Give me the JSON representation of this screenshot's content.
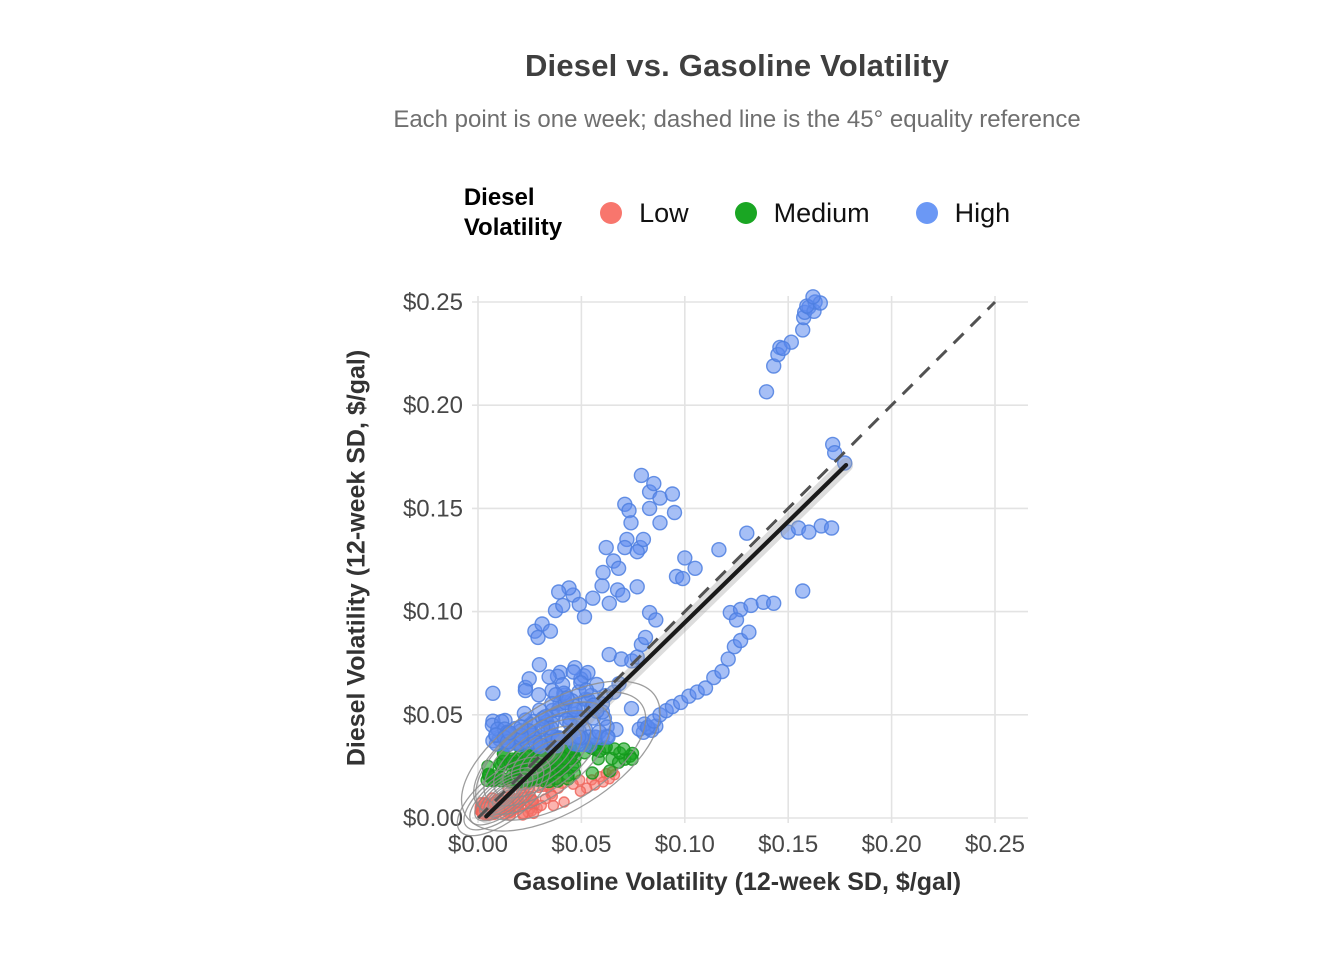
{
  "header": {
    "title": "Diesel vs. Gasoline Volatility",
    "subtitle": "Each point is one week; dashed line is the 45° equality reference"
  },
  "legend": {
    "title_line1": "Diesel",
    "title_line2": "Volatility",
    "items": [
      {
        "label": "Low",
        "color": "#F8766D"
      },
      {
        "label": "Medium",
        "color": "#1AA623"
      },
      {
        "label": "High",
        "color": "#6B98F5"
      }
    ]
  },
  "chart_data": {
    "type": "scatter",
    "title": "Diesel vs. Gasoline Volatility",
    "subtitle": "Each point is one week; dashed line is the 45° equality reference",
    "xlabel": "Gasoline Volatility (12-week SD, $/gal)",
    "ylabel": "Diesel Volatility (12-week SD, $/gal)",
    "xlim": [
      0,
      0.266
    ],
    "ylim": [
      0,
      0.253
    ],
    "grid": true,
    "legend_position": "top",
    "x_ticks": {
      "values": [
        0,
        0.05,
        0.1,
        0.15,
        0.2,
        0.25
      ],
      "labels": [
        "$0.00",
        "$0.05",
        "$0.10",
        "$0.15",
        "$0.20",
        "$0.25"
      ]
    },
    "y_ticks": {
      "values": [
        0,
        0.05,
        0.1,
        0.15,
        0.2,
        0.25
      ],
      "labels": [
        "$0.00",
        "$0.05",
        "$0.10",
        "$0.15",
        "$0.20",
        "$0.25"
      ]
    },
    "reference_line": {
      "meaning": "45-degree equality line",
      "style": "dashed",
      "color": "#525252",
      "from": [
        0,
        0
      ],
      "to": [
        0.25,
        0.25
      ]
    },
    "fit_line": {
      "meaning": "linear fit with confidence band",
      "color": "#1a1a1a",
      "band_color": "#9e9e9e",
      "from": [
        0.004,
        0.0008
      ],
      "to": [
        0.178,
        0.171
      ]
    },
    "contours": {
      "color": "#8c8c8c",
      "groups": [
        {
          "cx": 0.0125,
          "cy": 0.0105,
          "angle": -38,
          "rings": [
            [
              9,
              3.5
            ],
            [
              14,
              5.5
            ],
            [
              19,
              7.5
            ],
            [
              24,
              9.5
            ],
            [
              29,
              12
            ],
            [
              35,
              14.5
            ],
            [
              41,
              17
            ],
            [
              48,
              20
            ],
            [
              56,
              24
            ]
          ]
        },
        {
          "cx": 0.031,
          "cy": 0.029,
          "angle": -36,
          "rings": [
            [
              16,
              7
            ],
            [
              26,
              11
            ],
            [
              36,
              16
            ],
            [
              46,
              21
            ],
            [
              57,
              26
            ],
            [
              68,
              32
            ],
            [
              80,
              38
            ]
          ]
        },
        {
          "cx": 0.04,
          "cy": 0.03,
          "angle": -32,
          "rings": [
            [
              96,
              46
            ],
            [
              112,
              54
            ]
          ]
        }
      ]
    },
    "series": [
      {
        "name": "Low",
        "color": "#F8766D",
        "stroke": "#ef655c",
        "r": 5,
        "fill_opacity": 0.55,
        "cluster": {
          "seed": 33,
          "count": 120,
          "cx": 0.014,
          "sx": 0.013,
          "x_min": 0.001,
          "x_max": 0.066,
          "y_base": 0.002,
          "y_slope": 0.27,
          "y_sd": 0.0042,
          "y_min": 0.0012,
          "y_max": 0.0225
        },
        "points": [
          [
            0.055,
            0.0185
          ],
          [
            0.059,
            0.02
          ],
          [
            0.062,
            0.0215
          ],
          [
            0.065,
            0.0225
          ],
          [
            0.0635,
            0.019
          ],
          [
            0.0605,
            0.0175
          ],
          [
            0.0565,
            0.016
          ],
          [
            0.0525,
            0.0145
          ],
          [
            0.066,
            0.021
          ],
          [
            0.0495,
            0.013
          ]
        ]
      },
      {
        "name": "Medium",
        "color": "#1AA623",
        "stroke": "#14981c",
        "r": 6,
        "fill_opacity": 0.6,
        "cluster": {
          "seed": 22,
          "count": 130,
          "cx": 0.031,
          "sx": 0.016,
          "x_min": 0.004,
          "x_max": 0.076,
          "y_base": 0.0205,
          "y_slope": 0.155,
          "y_sd": 0.0047,
          "y_min": 0.0175,
          "y_max": 0.0385
        },
        "points": [
          [
            0.068,
            0.027
          ],
          [
            0.071,
            0.0285
          ],
          [
            0.0735,
            0.03
          ],
          [
            0.0685,
            0.0315
          ],
          [
            0.066,
            0.0335
          ],
          [
            0.0705,
            0.0335
          ],
          [
            0.052,
            0.0375
          ],
          [
            0.057,
            0.036
          ],
          [
            0.062,
            0.0345
          ],
          [
            0.0745,
            0.0285
          ]
        ]
      },
      {
        "name": "High",
        "color": "#5D8BEF",
        "stroke": "#4e7fe0",
        "r": 7,
        "fill_opacity": 0.55,
        "cluster": {
          "seed": 11,
          "count": 150,
          "cx": 0.037,
          "sx": 0.0175,
          "x_min": 0.006,
          "x_max": 0.082,
          "y_base": 0.0285,
          "y_slope": 0.45,
          "y_sd": 0.013,
          "y_min": 0.0345,
          "y_max": 0.098
        },
        "points": [
          [
            0.0275,
            0.0905
          ],
          [
            0.031,
            0.094
          ],
          [
            0.029,
            0.0875
          ],
          [
            0.0375,
            0.1005
          ],
          [
            0.041,
            0.103
          ],
          [
            0.046,
            0.108
          ],
          [
            0.044,
            0.1115
          ],
          [
            0.039,
            0.1095
          ],
          [
            0.035,
            0.0905
          ],
          [
            0.049,
            0.1035
          ],
          [
            0.0515,
            0.0975
          ],
          [
            0.0555,
            0.1065
          ],
          [
            0.06,
            0.1125
          ],
          [
            0.0635,
            0.104
          ],
          [
            0.0675,
            0.1105
          ],
          [
            0.07,
            0.108
          ],
          [
            0.0655,
            0.1245
          ],
          [
            0.068,
            0.121
          ],
          [
            0.062,
            0.131
          ],
          [
            0.0605,
            0.119
          ],
          [
            0.071,
            0.152
          ],
          [
            0.073,
            0.149
          ],
          [
            0.074,
            0.143
          ],
          [
            0.072,
            0.135
          ],
          [
            0.071,
            0.131
          ],
          [
            0.083,
            0.158
          ],
          [
            0.085,
            0.162
          ],
          [
            0.088,
            0.155
          ],
          [
            0.094,
            0.157
          ],
          [
            0.095,
            0.148
          ],
          [
            0.083,
            0.15
          ],
          [
            0.088,
            0.143
          ],
          [
            0.0785,
            0.131
          ],
          [
            0.077,
            0.129
          ],
          [
            0.08,
            0.135
          ],
          [
            0.079,
            0.166
          ],
          [
            0.077,
            0.112
          ],
          [
            0.077,
            0.078
          ],
          [
            0.079,
            0.084
          ],
          [
            0.081,
            0.0875
          ],
          [
            0.083,
            0.0995
          ],
          [
            0.086,
            0.096
          ],
          [
            0.08,
            0.0415
          ],
          [
            0.0825,
            0.0435
          ],
          [
            0.084,
            0.0425
          ],
          [
            0.086,
            0.0445
          ],
          [
            0.0805,
            0.0455
          ],
          [
            0.078,
            0.043
          ],
          [
            0.082,
            0.044
          ],
          [
            0.085,
            0.047
          ],
          [
            0.088,
            0.05
          ],
          [
            0.091,
            0.052
          ],
          [
            0.094,
            0.054
          ],
          [
            0.098,
            0.056
          ],
          [
            0.102,
            0.059
          ],
          [
            0.106,
            0.061
          ],
          [
            0.11,
            0.063
          ],
          [
            0.114,
            0.068
          ],
          [
            0.118,
            0.071
          ],
          [
            0.121,
            0.077
          ],
          [
            0.124,
            0.083
          ],
          [
            0.127,
            0.086
          ],
          [
            0.131,
            0.09
          ],
          [
            0.096,
            0.117
          ],
          [
            0.099,
            0.116
          ],
          [
            0.1,
            0.126
          ],
          [
            0.105,
            0.121
          ],
          [
            0.1165,
            0.13
          ],
          [
            0.13,
            0.138
          ],
          [
            0.122,
            0.0995
          ],
          [
            0.127,
            0.101
          ],
          [
            0.132,
            0.103
          ],
          [
            0.138,
            0.1045
          ],
          [
            0.143,
            0.104
          ],
          [
            0.125,
            0.096
          ],
          [
            0.15,
            0.1385
          ],
          [
            0.155,
            0.1405
          ],
          [
            0.16,
            0.1385
          ],
          [
            0.166,
            0.1415
          ],
          [
            0.171,
            0.1405
          ],
          [
            0.157,
            0.11
          ],
          [
            0.1715,
            0.181
          ],
          [
            0.1725,
            0.177
          ],
          [
            0.1773,
            0.172
          ],
          [
            0.1395,
            0.2065
          ],
          [
            0.143,
            0.219
          ],
          [
            0.146,
            0.228
          ],
          [
            0.1515,
            0.2305
          ],
          [
            0.157,
            0.2365
          ],
          [
            0.1575,
            0.2425
          ],
          [
            0.158,
            0.245
          ],
          [
            0.16,
            0.2475
          ],
          [
            0.1625,
            0.2455
          ],
          [
            0.163,
            0.25
          ],
          [
            0.1655,
            0.2495
          ],
          [
            0.159,
            0.248
          ],
          [
            0.145,
            0.2245
          ],
          [
            0.1475,
            0.2275
          ],
          [
            0.162,
            0.2525
          ]
        ]
      }
    ]
  }
}
